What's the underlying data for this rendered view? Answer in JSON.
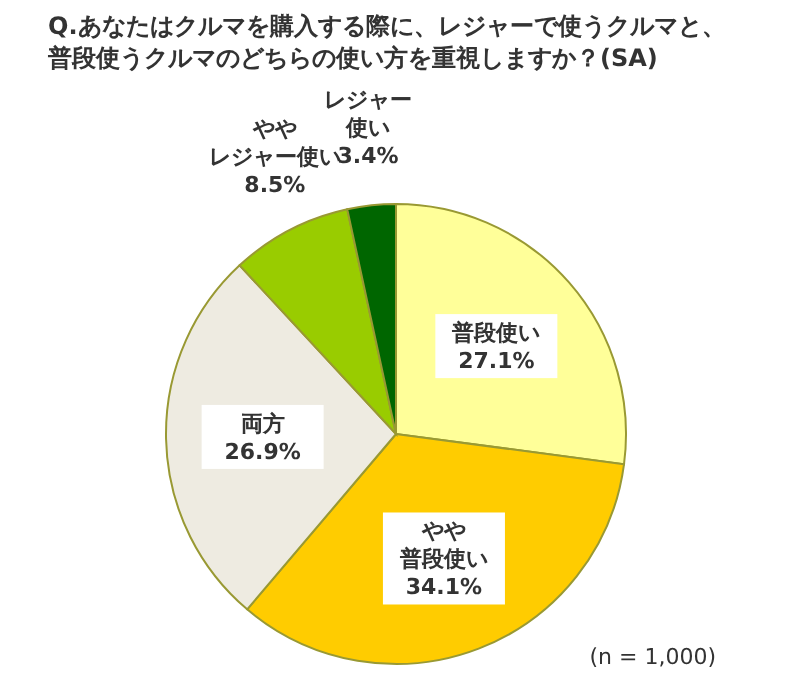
{
  "chart_data": {
    "type": "pie",
    "title": "Q.あなたはクルマを購入する際に、レジャーで使うクルマと、普段使うクルマのどちらの使い方を重視しますか？(SA)",
    "categories": [
      "普段使い",
      "やや普段使い",
      "両方",
      "ややレジャー使い",
      "レジャー使い"
    ],
    "values": [
      27.1,
      34.1,
      26.9,
      8.5,
      3.4
    ],
    "value_labels": [
      "27.1%",
      "34.1%",
      "26.9%",
      "8.5%",
      "3.4%"
    ],
    "colors": [
      "#ffff99",
      "#ffcc00",
      "#eeebe1",
      "#99cc00",
      "#006600"
    ],
    "annotations": [
      "(n = 1,000)"
    ]
  }
}
